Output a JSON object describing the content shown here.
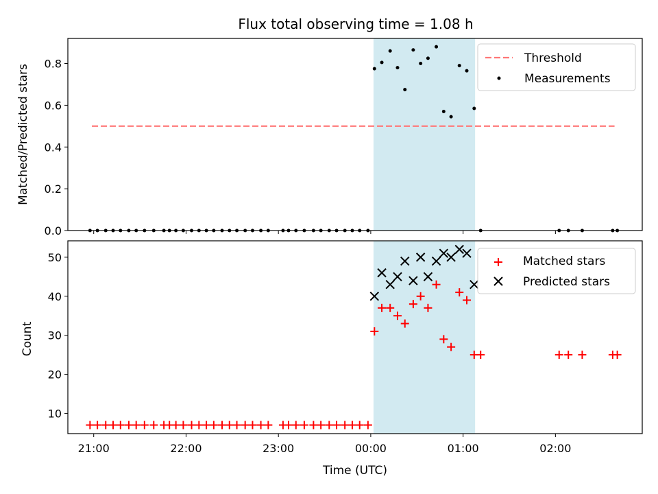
{
  "title": "Flux total observing time = 1.08 h",
  "colors": {
    "threshold": "#ff7777",
    "measurements": "#000000",
    "matched": "#ff0000",
    "predicted": "#000000",
    "highlight": "#add8e6"
  },
  "chart_data": [
    {
      "type": "scatter",
      "ylabel": "Matched/Predicted stars",
      "xlim": [
        -3.28,
        2.94
      ],
      "ylim": [
        0,
        0.92
      ],
      "yticks": [
        0.0,
        0.2,
        0.4,
        0.6,
        0.8
      ],
      "ytick_labels": [
        "0.0",
        "0.2",
        "0.4",
        "0.6",
        "0.8"
      ],
      "highlight_span": [
        0.03,
        1.13
      ],
      "legend": {
        "position": "top-right",
        "entries": [
          "Threshold",
          "Measurements"
        ]
      },
      "threshold": {
        "name": "Threshold",
        "x": [
          -3.02,
          2.64
        ],
        "y": 0.5
      },
      "series": [
        {
          "name": "Measurements",
          "x": [
            -3.04,
            -2.96,
            -2.87,
            -2.79,
            -2.71,
            -2.62,
            -2.54,
            -2.45,
            -2.35,
            -2.24,
            -2.18,
            -2.11,
            -2.03,
            -1.94,
            -1.86,
            -1.78,
            -1.7,
            -1.61,
            -1.53,
            -1.45,
            -1.36,
            -1.28,
            -1.19,
            -1.11,
            -0.95,
            -0.89,
            -0.81,
            -0.72,
            -0.62,
            -0.54,
            -0.45,
            -0.37,
            -0.28,
            -0.2,
            -0.12,
            -0.03,
            0.04,
            0.12,
            0.21,
            0.29,
            0.37,
            0.46,
            0.54,
            0.62,
            0.71,
            0.79,
            0.87,
            0.96,
            1.04,
            1.12,
            1.19,
            2.04,
            2.14,
            2.29,
            2.62,
            2.67
          ],
          "y": [
            0,
            0,
            0,
            0,
            0,
            0,
            0,
            0,
            0,
            0,
            0,
            0,
            0,
            0,
            0,
            0,
            0,
            0,
            0,
            0,
            0,
            0,
            0,
            0,
            0,
            0,
            0,
            0,
            0,
            0,
            0,
            0,
            0,
            0,
            0,
            0,
            0.775,
            0.805,
            0.86,
            0.78,
            0.675,
            0.865,
            0.8,
            0.825,
            0.88,
            0.57,
            0.545,
            0.79,
            0.765,
            0.585,
            0,
            0,
            0,
            0,
            0,
            0
          ]
        }
      ]
    },
    {
      "type": "scatter",
      "xlabel": "Time (UTC)",
      "ylabel": "Count",
      "xlim": [
        -3.28,
        2.94
      ],
      "ylim": [
        4.8,
        54.2
      ],
      "xticks": [
        -3,
        -2,
        -1,
        0,
        1,
        2
      ],
      "xtick_labels": [
        "21:00",
        "22:00",
        "23:00",
        "00:00",
        "01:00",
        "02:00"
      ],
      "yticks": [
        10,
        20,
        30,
        40,
        50
      ],
      "ytick_labels": [
        "10",
        "20",
        "30",
        "40",
        "50"
      ],
      "highlight_span": [
        0.03,
        1.13
      ],
      "legend": {
        "position": "top-right",
        "entries": [
          "Matched stars",
          "Predicted stars"
        ]
      },
      "series": [
        {
          "name": "Matched stars",
          "marker": "+",
          "x": [
            -3.04,
            -2.96,
            -2.87,
            -2.79,
            -2.71,
            -2.62,
            -2.54,
            -2.45,
            -2.35,
            -2.24,
            -2.18,
            -2.11,
            -2.03,
            -1.94,
            -1.86,
            -1.78,
            -1.7,
            -1.61,
            -1.53,
            -1.45,
            -1.36,
            -1.28,
            -1.19,
            -1.11,
            -0.95,
            -0.89,
            -0.81,
            -0.72,
            -0.62,
            -0.54,
            -0.45,
            -0.37,
            -0.28,
            -0.2,
            -0.12,
            -0.03,
            0.04,
            0.12,
            0.21,
            0.29,
            0.37,
            0.46,
            0.54,
            0.62,
            0.71,
            0.79,
            0.87,
            0.96,
            1.04,
            1.12,
            1.19,
            2.04,
            2.14,
            2.29,
            2.62,
            2.67
          ],
          "y": [
            7,
            7,
            7,
            7,
            7,
            7,
            7,
            7,
            7,
            7,
            7,
            7,
            7,
            7,
            7,
            7,
            7,
            7,
            7,
            7,
            7,
            7,
            7,
            7,
            7,
            7,
            7,
            7,
            7,
            7,
            7,
            7,
            7,
            7,
            7,
            7,
            31,
            37,
            37,
            35,
            33,
            38,
            40,
            37,
            43,
            29,
            27,
            41,
            39,
            25,
            25,
            25,
            25,
            25,
            25,
            25
          ]
        },
        {
          "name": "Predicted stars",
          "marker": "x",
          "x": [
            0.04,
            0.12,
            0.21,
            0.29,
            0.37,
            0.46,
            0.54,
            0.62,
            0.71,
            0.79,
            0.87,
            0.96,
            1.04,
            1.12
          ],
          "y": [
            40,
            46,
            43,
            45,
            49,
            44,
            50,
            45,
            49,
            51,
            50,
            52,
            51,
            43
          ]
        }
      ]
    }
  ]
}
